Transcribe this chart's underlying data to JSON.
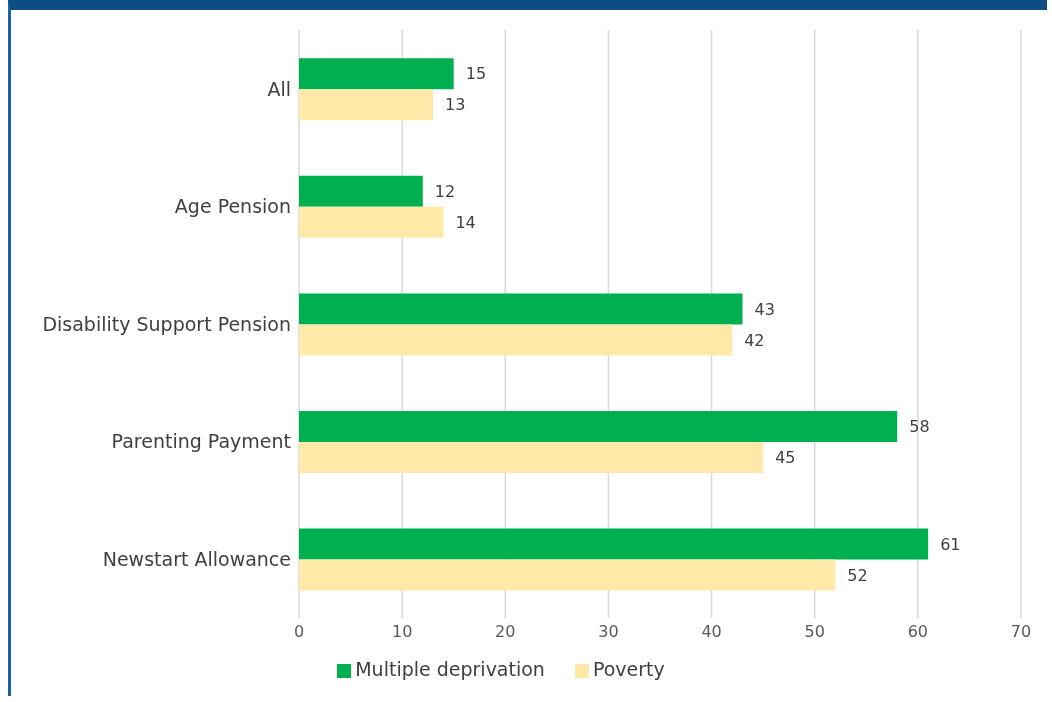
{
  "chart_data": {
    "type": "bar",
    "orientation": "horizontal",
    "categories": [
      "All",
      "Age Pension",
      "Disability Support Pension",
      "Parenting Payment",
      "Newstart Allowance"
    ],
    "series": [
      {
        "name": "Multiple deprivation",
        "color": "#00b050",
        "values": [
          15,
          12,
          43,
          58,
          61
        ]
      },
      {
        "name": "Poverty",
        "color": "#ffe9a9",
        "values": [
          13,
          14,
          42,
          45,
          52
        ]
      }
    ],
    "xlim": [
      0,
      70
    ],
    "xticks": [
      0,
      10,
      20,
      30,
      40,
      50,
      60,
      70
    ],
    "grid": "x",
    "legend": "bottom",
    "data_labels": true
  }
}
